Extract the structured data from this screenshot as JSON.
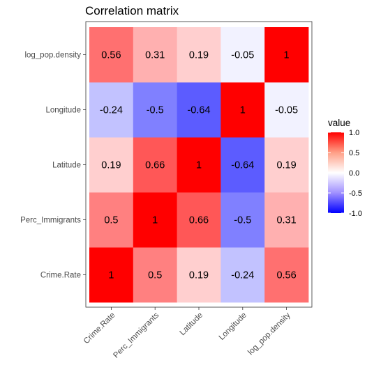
{
  "chart_data": {
    "type": "heatmap",
    "title": "Correlation matrix",
    "x_categories": [
      "Crime.Rate",
      "Perc_Immigrants",
      "Latitude",
      "Longitude",
      "log_pop.density"
    ],
    "y_categories": [
      "Crime.Rate",
      "Perc_Immigrants",
      "Latitude",
      "Longitude",
      "log_pop.density"
    ],
    "matrix": [
      [
        1,
        0.5,
        0.19,
        -0.24,
        0.56
      ],
      [
        0.5,
        1,
        0.66,
        -0.5,
        0.31
      ],
      [
        0.19,
        0.66,
        1,
        -0.64,
        0.19
      ],
      [
        -0.24,
        -0.5,
        -0.64,
        1,
        -0.05
      ],
      [
        0.56,
        0.31,
        0.19,
        -0.05,
        1
      ]
    ],
    "cell_labels": [
      [
        "1",
        "0.5",
        "0.19",
        "-0.24",
        "0.56"
      ],
      [
        "0.5",
        "1",
        "0.66",
        "-0.5",
        "0.31"
      ],
      [
        "0.19",
        "0.66",
        "1",
        "-0.64",
        "0.19"
      ],
      [
        "-0.24",
        "-0.5",
        "-0.64",
        "1",
        "-0.05"
      ],
      [
        "0.56",
        "0.31",
        "0.19",
        "-0.05",
        "1"
      ]
    ],
    "legend": {
      "title": "value",
      "ticks": [
        "1.0",
        "0.5",
        "0.0",
        "-0.5",
        "-1.0"
      ],
      "tick_values": [
        1,
        0.5,
        0,
        -0.5,
        -1
      ],
      "range": [
        -1,
        1
      ],
      "placement": "right"
    },
    "colors": {
      "low": "#0000ff",
      "mid": "#ffffff",
      "high": "#ff0000"
    },
    "grid": false
  }
}
